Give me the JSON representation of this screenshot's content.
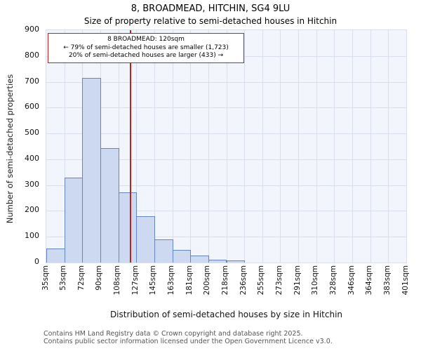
{
  "title": "8, BROADMEAD, HITCHIN, SG4 9LU",
  "subtitle": "Size of property relative to semi-detached houses in Hitchin",
  "annotation": {
    "line1": "8 BROADMEAD: 120sqm",
    "line2": "← 79% of semi-detached houses are smaller (1,723)",
    "line3": "20% of semi-detached houses are larger (433) →"
  },
  "footer": {
    "line1": "Contains HM Land Registry data © Crown copyright and database right 2025.",
    "line2": "Contains public sector information licensed under the Open Government Licence v3.0."
  },
  "chart_data": {
    "type": "bar",
    "title": "8, BROADMEAD, HITCHIN, SG4 9LU — Size of property relative to semi-detached houses in Hitchin",
    "xlabel": "Distribution of semi-detached houses by size in Hitchin",
    "ylabel": "Number of semi-detached properties",
    "x_tick_labels": [
      "35sqm",
      "53sqm",
      "72sqm",
      "90sqm",
      "108sqm",
      "127sqm",
      "145sqm",
      "163sqm",
      "181sqm",
      "200sqm",
      "218sqm",
      "236sqm",
      "255sqm",
      "273sqm",
      "291sqm",
      "310sqm",
      "328sqm",
      "346sqm",
      "364sqm",
      "383sqm",
      "401sqm"
    ],
    "bin_edges_sqm": [
      35,
      53,
      72,
      90,
      108,
      127,
      145,
      163,
      181,
      200,
      218,
      236,
      255,
      273,
      291,
      310,
      328,
      346,
      364,
      383,
      401
    ],
    "values": [
      55,
      330,
      715,
      443,
      272,
      180,
      90,
      50,
      28,
      12,
      7,
      0,
      0,
      0,
      0,
      0,
      0,
      0,
      0,
      0
    ],
    "ylim": [
      0,
      900
    ],
    "y_ticks": [
      0,
      100,
      200,
      300,
      400,
      500,
      600,
      700,
      800,
      900
    ],
    "marker_sqm": 120,
    "marker_label": "8 BROADMEAD: 120sqm",
    "smaller_pct": 79,
    "smaller_count": 1723,
    "larger_pct": 20,
    "larger_count": 433,
    "grid": true,
    "colors": {
      "bar_fill": "#ccd9f1",
      "bar_edge": "#6286bd",
      "marker": "#bb2222",
      "grid": "#d8dfec",
      "plot_bg": "#f2f6fc"
    }
  }
}
